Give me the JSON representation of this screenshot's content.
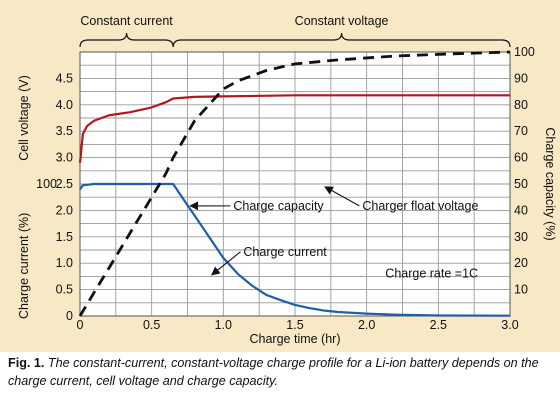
{
  "phases": {
    "constant_current": "Constant current",
    "constant_voltage": "Constant voltage"
  },
  "caption": {
    "lead": "Fig. 1.",
    "body": "The constant-current, constant-voltage charge profile for a Li-ion battery depends on the charge current, cell voltage and charge capacity."
  },
  "colors": {
    "background": "#f7e9c6",
    "grid": "#9a9a9a",
    "voltage": "#b0181e",
    "current": "#1f5fa8",
    "capacity": "#111111"
  },
  "chart_data": {
    "type": "line",
    "xlabel": "Charge time (hr)",
    "xlim": [
      0,
      3.0
    ],
    "x_ticks": [
      "0",
      "0.5",
      "1.0",
      "1.5",
      "2.0",
      "2.5",
      "3.0"
    ],
    "y_left_upper": {
      "label": "Cell voltage (V)",
      "ylim": [
        0,
        5
      ],
      "ticks": [
        "3.0",
        "3.5",
        "4.0",
        "4.5"
      ],
      "tick_values": [
        3.0,
        3.5,
        4.0,
        4.5
      ]
    },
    "y_left_lower": {
      "label": "Charge current (%)",
      "ylim": [
        0,
        100
      ],
      "ticks": [
        "0",
        "0.5",
        "1.0",
        "1.5",
        "2.0",
        "2.5"
      ],
      "tick_values": [
        0,
        10,
        20,
        30,
        40,
        50
      ]
    },
    "y_left_shared_label": "100",
    "y_right": {
      "label": "Charge capacity (%)",
      "ylim": [
        0,
        100
      ],
      "ticks": [
        "10",
        "20",
        "30",
        "40",
        "50",
        "60",
        "70",
        "80",
        "90",
        "100"
      ]
    },
    "series": [
      {
        "name": "Charger float voltage",
        "axis": "left_voltage",
        "style": "solid",
        "points": [
          [
            0,
            2.9
          ],
          [
            0.02,
            3.45
          ],
          [
            0.05,
            3.6
          ],
          [
            0.1,
            3.7
          ],
          [
            0.2,
            3.8
          ],
          [
            0.35,
            3.86
          ],
          [
            0.5,
            3.95
          ],
          [
            0.6,
            4.05
          ],
          [
            0.65,
            4.12
          ],
          [
            0.8,
            4.15
          ],
          [
            1.0,
            4.16
          ],
          [
            1.5,
            4.18
          ],
          [
            2.0,
            4.18
          ],
          [
            3.0,
            4.18
          ]
        ]
      },
      {
        "name": "Charge current",
        "axis": "left_current",
        "style": "solid",
        "points": [
          [
            0,
            48
          ],
          [
            0.02,
            49.5
          ],
          [
            0.1,
            50
          ],
          [
            0.3,
            50
          ],
          [
            0.5,
            50
          ],
          [
            0.65,
            50
          ],
          [
            0.7,
            46
          ],
          [
            0.8,
            38
          ],
          [
            0.9,
            30
          ],
          [
            1.0,
            22
          ],
          [
            1.1,
            16
          ],
          [
            1.2,
            11.5
          ],
          [
            1.3,
            8
          ],
          [
            1.4,
            6
          ],
          [
            1.5,
            4.2
          ],
          [
            1.6,
            3
          ],
          [
            1.7,
            2.1
          ],
          [
            1.8,
            1.5
          ],
          [
            2.0,
            0.9
          ],
          [
            2.2,
            0.5
          ],
          [
            2.5,
            0.2
          ],
          [
            3.0,
            0.1
          ]
        ]
      },
      {
        "name": "Charge capacity",
        "axis": "right",
        "style": "dashed",
        "points": [
          [
            0,
            0
          ],
          [
            0.1,
            9
          ],
          [
            0.2,
            18
          ],
          [
            0.3,
            27
          ],
          [
            0.4,
            36
          ],
          [
            0.5,
            45
          ],
          [
            0.6,
            54
          ],
          [
            0.65,
            60
          ],
          [
            0.8,
            74
          ],
          [
            1.0,
            86
          ],
          [
            1.1,
            89
          ],
          [
            1.3,
            93
          ],
          [
            1.5,
            95.5
          ],
          [
            1.8,
            97
          ],
          [
            2.2,
            98.5
          ],
          [
            2.6,
            99.3
          ],
          [
            3.0,
            100
          ]
        ]
      }
    ],
    "annotations": [
      {
        "text": "Charge capacity",
        "series": "Charge capacity",
        "tx": 1.07,
        "ty": 40.2,
        "ax": 0.77,
        "ay": 41.7
      },
      {
        "text": "Charger float voltage",
        "series": "Charger float voltage",
        "tx": 1.97,
        "ty": 40.2,
        "ax": 1.71,
        "ay": 48.9
      },
      {
        "text": "Charge current",
        "series": "Charge current",
        "tx": 1.14,
        "ty": 22.8,
        "ax": 0.92,
        "ay": 15.6
      },
      {
        "text": "Charge rate =1C",
        "tx": 2.13,
        "ty": 14.6
      }
    ]
  }
}
